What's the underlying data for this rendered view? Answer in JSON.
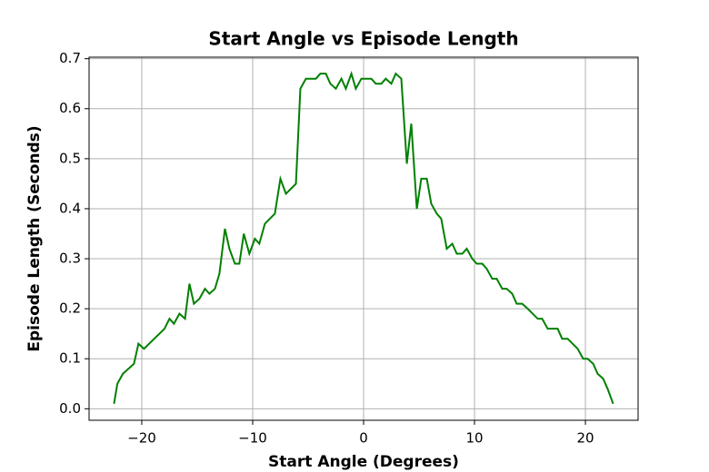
{
  "chart_data": {
    "type": "line",
    "title": "Start Angle vs Episode Length",
    "x_label": "Start Angle (Degrees)",
    "y_label": "Episode Length (Seconds)",
    "x": [
      -22.5,
      -22.2,
      -21.7,
      -20.7,
      -20.3,
      -19.8,
      -17.95,
      -17.5,
      -17.1,
      -16.6,
      -16.1,
      -15.7,
      -15.3,
      -14.8,
      -14.3,
      -13.9,
      -13.4,
      -13.0,
      -12.5,
      -12.1,
      -11.6,
      -11.2,
      -10.8,
      -10.3,
      -9.8,
      -9.4,
      -8.9,
      -8.0,
      -7.5,
      -7.0,
      -6.1,
      -5.7,
      -5.2,
      -4.3,
      -3.9,
      -3.4,
      -3.0,
      -2.5,
      -2.0,
      -1.6,
      -1.1,
      -0.7,
      -0.2,
      0.7,
      1.1,
      1.6,
      2.0,
      2.5,
      2.9,
      3.4,
      3.9,
      4.3,
      4.8,
      5.2,
      5.7,
      6.1,
      6.6,
      7.0,
      7.5,
      8.0,
      8.4,
      8.9,
      9.3,
      9.8,
      10.2,
      10.7,
      11.1,
      11.6,
      12.0,
      12.5,
      12.9,
      13.4,
      13.8,
      14.3,
      14.8,
      15.7,
      16.1,
      16.6,
      17.5,
      17.9,
      18.4,
      19.3,
      19.8,
      20.2,
      20.7,
      21.1,
      21.6,
      22.0,
      22.5
    ],
    "series": [
      {
        "color": "#008000",
        "values": [
          0.01,
          0.05,
          0.07,
          0.09,
          0.13,
          0.12,
          0.16,
          0.18,
          0.17,
          0.19,
          0.18,
          0.25,
          0.21,
          0.22,
          0.24,
          0.23,
          0.24,
          0.27,
          0.36,
          0.32,
          0.29,
          0.29,
          0.35,
          0.31,
          0.34,
          0.33,
          0.37,
          0.39,
          0.46,
          0.43,
          0.45,
          0.64,
          0.66,
          0.66,
          0.67,
          0.67,
          0.65,
          0.64,
          0.66,
          0.64,
          0.67,
          0.64,
          0.66,
          0.66,
          0.65,
          0.65,
          0.66,
          0.65,
          0.67,
          0.66,
          0.49,
          0.57,
          0.4,
          0.46,
          0.46,
          0.41,
          0.39,
          0.38,
          0.32,
          0.33,
          0.31,
          0.31,
          0.32,
          0.3,
          0.29,
          0.29,
          0.28,
          0.26,
          0.26,
          0.24,
          0.24,
          0.23,
          0.21,
          0.21,
          0.2,
          0.18,
          0.18,
          0.16,
          0.16,
          0.14,
          0.14,
          0.12,
          0.1,
          0.1,
          0.09,
          0.07,
          0.06,
          0.04,
          0.01
        ]
      }
    ],
    "xlim": [
      -24.75,
      24.75
    ],
    "xticks": [
      {
        "value": -20,
        "label": "−20"
      },
      {
        "value": -10,
        "label": "−10"
      },
      0,
      10,
      20
    ],
    "ylim": [
      -0.023,
      0.703
    ],
    "yticks": [
      {
        "value": 0,
        "label": "0.0"
      },
      0.1,
      0.2,
      0.3,
      0.4,
      0.5,
      0.6,
      0.7
    ],
    "grid": true
  }
}
